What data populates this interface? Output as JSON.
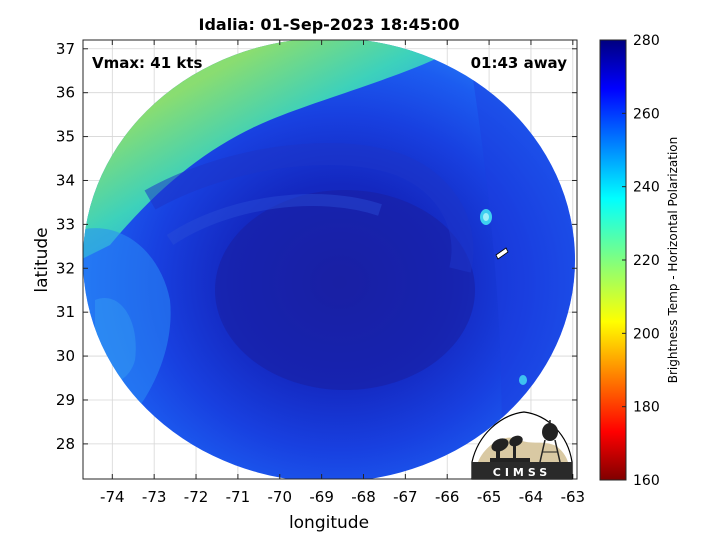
{
  "title": "Idalia: 01-Sep-2023 18:45:00",
  "annotations": {
    "vmax": "Vmax: 41 kts",
    "time_away": "01:43 away"
  },
  "axes": {
    "xlabel": "longitude",
    "ylabel": "latitude",
    "xlim": [
      -74.7,
      -62.9
    ],
    "ylim": [
      27.2,
      37.2
    ],
    "xticks": [
      "-74",
      "-73",
      "-72",
      "-71",
      "-70",
      "-69",
      "-68",
      "-67",
      "-66",
      "-65",
      "-64",
      "-63"
    ],
    "yticks": [
      "28",
      "29",
      "30",
      "31",
      "32",
      "33",
      "34",
      "35",
      "36",
      "37"
    ],
    "grid": true
  },
  "colorbar": {
    "label": "Brightness Temp - Horizontal Polarization",
    "range": [
      160,
      280
    ],
    "ticks": [
      "280",
      "260",
      "240",
      "220",
      "200",
      "180",
      "160"
    ],
    "colormap": "jet"
  },
  "logo": {
    "text": "CIMSS"
  }
}
